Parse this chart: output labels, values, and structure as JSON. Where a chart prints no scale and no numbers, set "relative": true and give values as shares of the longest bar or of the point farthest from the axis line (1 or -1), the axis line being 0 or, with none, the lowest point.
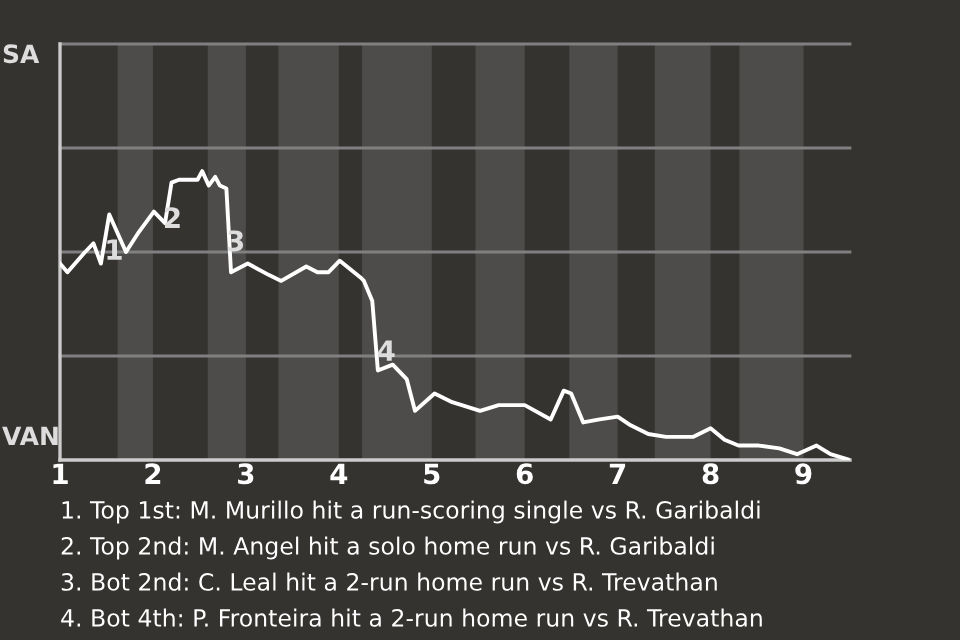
{
  "chart_data": {
    "type": "line",
    "relative": true,
    "x": [
      1.0,
      1.08,
      1.27,
      1.36,
      1.44,
      1.53,
      1.71,
      1.85,
      2.01,
      2.13,
      2.2,
      2.28,
      2.48,
      2.53,
      2.6,
      2.67,
      2.72,
      2.79,
      2.84,
      3.02,
      3.25,
      3.38,
      3.65,
      3.77,
      3.89,
      4.01,
      4.24,
      4.27,
      4.36,
      4.42,
      4.58,
      4.73,
      4.82,
      5.03,
      5.22,
      5.52,
      5.72,
      6.0,
      6.28,
      6.42,
      6.5,
      6.63,
      6.79,
      7.0,
      7.14,
      7.33,
      7.52,
      7.81,
      8.0,
      8.15,
      8.3,
      8.52,
      8.74,
      8.93,
      9.14,
      9.29,
      9.5
    ],
    "series": [
      {
        "color": "#ffffff",
        "values": [
          0.68,
          0.65,
          0.72,
          0.75,
          0.68,
          0.85,
          0.72,
          0.79,
          0.86,
          0.82,
          0.96,
          0.97,
          0.97,
          1.0,
          0.95,
          0.98,
          0.95,
          0.94,
          0.65,
          0.68,
          0.64,
          0.62,
          0.67,
          0.65,
          0.65,
          0.69,
          0.63,
          0.62,
          0.55,
          0.31,
          0.33,
          0.28,
          0.17,
          0.23,
          0.2,
          0.17,
          0.19,
          0.19,
          0.14,
          0.24,
          0.23,
          0.13,
          0.14,
          0.15,
          0.12,
          0.09,
          0.08,
          0.08,
          0.11,
          0.07,
          0.05,
          0.05,
          0.04,
          0.02,
          0.05,
          0.02,
          0.0
        ]
      }
    ],
    "xlim": [
      1,
      9.5
    ],
    "xticks": [
      1,
      2,
      3,
      4,
      5,
      6,
      7,
      8,
      9
    ],
    "marker": "none",
    "line_style": "solid",
    "ref_lines": [
      {
        "axis": "y",
        "value": 0.36,
        "color": "#808080"
      },
      {
        "axis": "y",
        "value": 0.72,
        "color": "#808080"
      },
      {
        "axis": "y",
        "value": 1.08,
        "color": "#808080"
      },
      {
        "axis": "y",
        "value": 1.44,
        "color": "#808080"
      }
    ],
    "bands": [
      {
        "axis": "x",
        "from": 1.62,
        "to": 2,
        "color": "#4d4c4a"
      },
      {
        "axis": "x",
        "from": 2.59,
        "to": 3,
        "color": "#4d4c4a"
      },
      {
        "axis": "x",
        "from": 3.35,
        "to": 4,
        "color": "#4d4c4a"
      },
      {
        "axis": "x",
        "from": 4.25,
        "to": 5,
        "color": "#4d4c4a"
      },
      {
        "axis": "x",
        "from": 5.47,
        "to": 6,
        "color": "#4d4c4a"
      },
      {
        "axis": "x",
        "from": 6.48,
        "to": 7,
        "color": "#4d4c4a"
      },
      {
        "axis": "x",
        "from": 7.4,
        "to": 8,
        "color": "#4d4c4a"
      },
      {
        "axis": "x",
        "from": 8.31,
        "to": 9,
        "color": "#4d4c4a"
      }
    ],
    "annotations": [
      "SA",
      "VAN",
      {
        "text": "1",
        "x": 1.58,
        "y": 0.72
      },
      {
        "text": "2",
        "x": 2.21,
        "y": 0.83
      },
      {
        "text": "3",
        "x": 2.89,
        "y": 0.75
      },
      {
        "text": "4",
        "x": 4.51,
        "y": 0.37
      },
      "1. Top 1st: M. Murillo hit a run-scoring single vs R. Garibaldi",
      "2. Top 2nd: M. Angel hit a solo home run vs R. Garibaldi",
      "3. Bot 2nd: C. Leal hit a 2-run home run vs R. Trevathan",
      "4. Bot 4th: P. Fronteira hit a 2-run home run vs R. Trevathan"
    ]
  }
}
